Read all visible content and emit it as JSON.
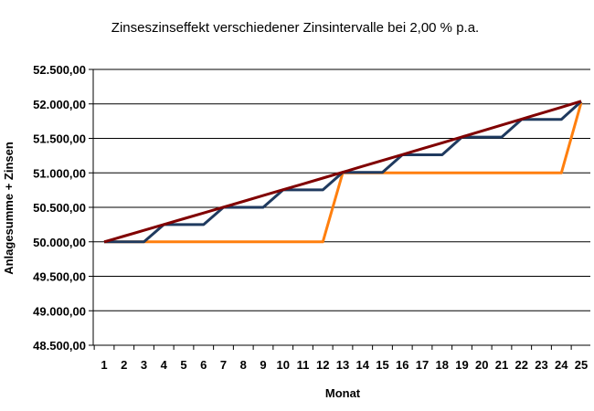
{
  "chart_data": {
    "type": "line",
    "title": "Zinseszinseffekt verschiedener Zinsintervalle bei 2,00 % p.a.",
    "xlabel": "Monat",
    "ylabel": "Anlagesumme + Zinsen",
    "x": [
      1,
      2,
      3,
      4,
      5,
      6,
      7,
      8,
      9,
      10,
      11,
      12,
      13,
      14,
      15,
      16,
      17,
      18,
      19,
      20,
      21,
      22,
      23,
      24,
      25
    ],
    "x_tick_labels": [
      "1",
      "2",
      "3",
      "4",
      "5",
      "6",
      "7",
      "8",
      "9",
      "10",
      "11",
      "12",
      "13",
      "14",
      "15",
      "16",
      "17",
      "18",
      "19",
      "20",
      "21",
      "22",
      "23",
      "24",
      "25"
    ],
    "ylim": [
      48500,
      52500
    ],
    "y_tick_values": [
      48500,
      49000,
      49500,
      50000,
      50500,
      51000,
      51500,
      52000,
      52500
    ],
    "y_tick_labels": [
      "48.500,00",
      "49.000,00",
      "49.500,00",
      "50.000,00",
      "50.500,00",
      "51.000,00",
      "51.500,00",
      "52.000,00",
      "52.500,00"
    ],
    "grid": "horizontal",
    "legend": "none",
    "series": [
      {
        "color": "#FF7F0E",
        "values": [
          50000,
          50000,
          50000,
          50000,
          50000,
          50000,
          50000,
          50000,
          50000,
          50000,
          50000,
          50000,
          51000,
          51000,
          51000,
          51000,
          51000,
          51000,
          51000,
          51000,
          51000,
          51000,
          51000,
          51000,
          52020
        ]
      },
      {
        "color": "#1F3A5F",
        "values": [
          50000,
          50000,
          50000,
          50250,
          50250,
          50250,
          50500.63,
          50500.63,
          50500.63,
          50753.13,
          50753.13,
          50753.13,
          51006.9,
          51006.9,
          51006.9,
          51261.94,
          51261.94,
          51261.94,
          51518.25,
          51518.25,
          51518.25,
          51775.84,
          51775.84,
          51775.84,
          52034.72
        ]
      },
      {
        "color": "#800000",
        "values": [
          50000,
          50083.33,
          50166.81,
          50250.42,
          50334.17,
          50418.06,
          50502.09,
          50586.26,
          50670.57,
          50755.02,
          50839.61,
          50924.34,
          51009.22,
          51094.24,
          51179.4,
          51264.7,
          51350.14,
          51435.72,
          51521.45,
          51607.32,
          51693.33,
          51779.49,
          51865.79,
          51952.23,
          52038.82
        ]
      }
    ]
  }
}
